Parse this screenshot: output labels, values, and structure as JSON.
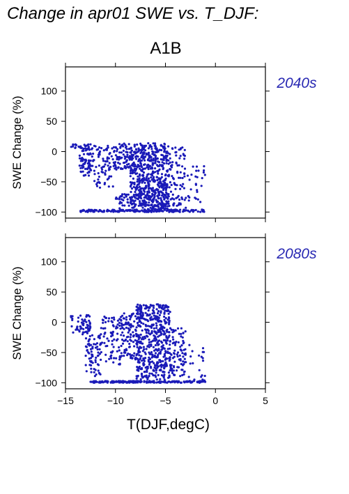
{
  "title": "Change in apr01 SWE vs. T_DJF:",
  "scenario": "A1B",
  "colors": {
    "points": "#1a1ab8",
    "period_label": "#2929b3",
    "axes": "#000000"
  },
  "chart_data": [
    {
      "type": "scatter",
      "period_label": "2040s",
      "xlabel": "T(DJF,degC)",
      "ylabel": "SWE Change (%)",
      "xlim": [
        -15,
        5
      ],
      "ylim": [
        -110,
        140
      ],
      "x_ticks": [
        -15,
        -10,
        -5,
        0,
        5
      ],
      "x_tick_labels": [
        "−15",
        "−10",
        "−5",
        "0",
        "5"
      ],
      "y_ticks": [
        -100,
        -50,
        0,
        50,
        100
      ],
      "y_tick_labels": [
        "−100",
        "−50",
        "0",
        "50",
        "100"
      ],
      "show_x_tick_labels": false,
      "grid": false,
      "series": [
        {
          "clusters": [
            {
              "x": [
                -13.6,
                -12.2
              ],
              "y": [
                -40,
                12
              ],
              "n": 90
            },
            {
              "x": [
                -12.2,
                -10.2
              ],
              "y": [
                -60,
                10
              ],
              "n": 70
            },
            {
              "x": [
                -10.2,
                -8.5
              ],
              "y": [
                -30,
                14
              ],
              "n": 80
            },
            {
              "x": [
                -8.5,
                -6.5
              ],
              "y": [
                -90,
                14
              ],
              "n": 300
            },
            {
              "x": [
                -6.5,
                -4.8
              ],
              "y": [
                -95,
                14
              ],
              "n": 260
            },
            {
              "x": [
                -4.8,
                -3.0
              ],
              "y": [
                -90,
                10
              ],
              "n": 90
            },
            {
              "x": [
                -3.0,
                -1.0
              ],
              "y": [
                -100,
                -20
              ],
              "n": 30
            },
            {
              "x": [
                -13.5,
                -1.0
              ],
              "y": [
                -100,
                -96
              ],
              "n": 160
            },
            {
              "x": [
                -10.0,
                -4.5
              ],
              "y": [
                -100,
                -70
              ],
              "n": 120
            },
            {
              "x": [
                -14.5,
                -13.5
              ],
              "y": [
                5,
                12
              ],
              "n": 12
            }
          ]
        }
      ]
    },
    {
      "type": "scatter",
      "period_label": "2080s",
      "xlabel": "T(DJF,degC)",
      "ylabel": "SWE Change (%)",
      "xlim": [
        -15,
        5
      ],
      "ylim": [
        -110,
        140
      ],
      "x_ticks": [
        -15,
        -10,
        -5,
        0,
        5
      ],
      "x_tick_labels": [
        "−15",
        "−10",
        "−5",
        "0",
        "5"
      ],
      "y_ticks": [
        -100,
        -50,
        0,
        50,
        100
      ],
      "y_tick_labels": [
        "−100",
        "−50",
        "0",
        "50",
        "100"
      ],
      "show_x_tick_labels": true,
      "grid": false,
      "series": [
        {
          "clusters": [
            {
              "x": [
                -14.5,
                -12.5
              ],
              "y": [
                -20,
                15
              ],
              "n": 60
            },
            {
              "x": [
                -13.0,
                -11.5
              ],
              "y": [
                -90,
                -20
              ],
              "n": 70
            },
            {
              "x": [
                -11.5,
                -9.5
              ],
              "y": [
                -70,
                10
              ],
              "n": 80
            },
            {
              "x": [
                -9.5,
                -7.5
              ],
              "y": [
                -60,
                15
              ],
              "n": 110
            },
            {
              "x": [
                -8.0,
                -6.0
              ],
              "y": [
                -95,
                28
              ],
              "n": 260
            },
            {
              "x": [
                -6.0,
                -4.5
              ],
              "y": [
                -95,
                25
              ],
              "n": 220
            },
            {
              "x": [
                -4.5,
                -3.0
              ],
              "y": [
                -90,
                -10
              ],
              "n": 80
            },
            {
              "x": [
                -3.0,
                -1.0
              ],
              "y": [
                -100,
                -30
              ],
              "n": 25
            },
            {
              "x": [
                -12.5,
                -1.0
              ],
              "y": [
                -100,
                -97
              ],
              "n": 180
            },
            {
              "x": [
                -8.0,
                -4.5
              ],
              "y": [
                24,
                30
              ],
              "n": 25
            }
          ]
        }
      ]
    }
  ]
}
